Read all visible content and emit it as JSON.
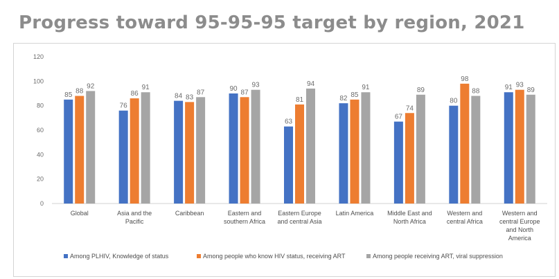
{
  "chart_data": {
    "type": "bar",
    "title": "Progress toward 95-95-95 target by region, 2021",
    "categories": [
      [
        "Global"
      ],
      [
        "Asia and the",
        "Pacific"
      ],
      [
        "Caribbean"
      ],
      [
        "Eastern and",
        "southern Africa"
      ],
      [
        "Eastern Europe",
        "and central Asia"
      ],
      [
        "Latin America"
      ],
      [
        "Middle East and",
        "North Africa"
      ],
      [
        "Western and",
        "central Africa"
      ],
      [
        "Western and",
        "central Europe",
        "and North",
        "America"
      ]
    ],
    "series": [
      {
        "name": "Among PLHIV, Knowledge of status",
        "color": "#4472c4",
        "values": [
          85,
          76,
          84,
          90,
          63,
          82,
          67,
          80,
          91
        ]
      },
      {
        "name": "Among people who know HIV status, receiving ART",
        "color": "#ed7d31",
        "values": [
          88,
          86,
          83,
          87,
          81,
          85,
          74,
          98,
          93
        ]
      },
      {
        "name": "Among people receiving ART, viral suppression",
        "color": "#a5a5a5",
        "values": [
          92,
          91,
          87,
          93,
          94,
          91,
          89,
          88,
          89
        ]
      }
    ],
    "data_labels": [
      [
        "85",
        "76",
        "84",
        "90",
        "63",
        "82",
        "67",
        "80",
        "91"
      ],
      [
        "88",
        "86",
        "83",
        "87",
        "81",
        "85",
        "74",
        "98",
        "93"
      ],
      [
        "92",
        "91",
        "87",
        "93",
        "94",
        "91",
        "89",
        "88",
        "89"
      ]
    ],
    "ylim": [
      0,
      120
    ],
    "yticks": [
      0,
      20,
      40,
      60,
      80,
      100,
      120
    ],
    "grid": false,
    "legend_position": "bottom"
  }
}
